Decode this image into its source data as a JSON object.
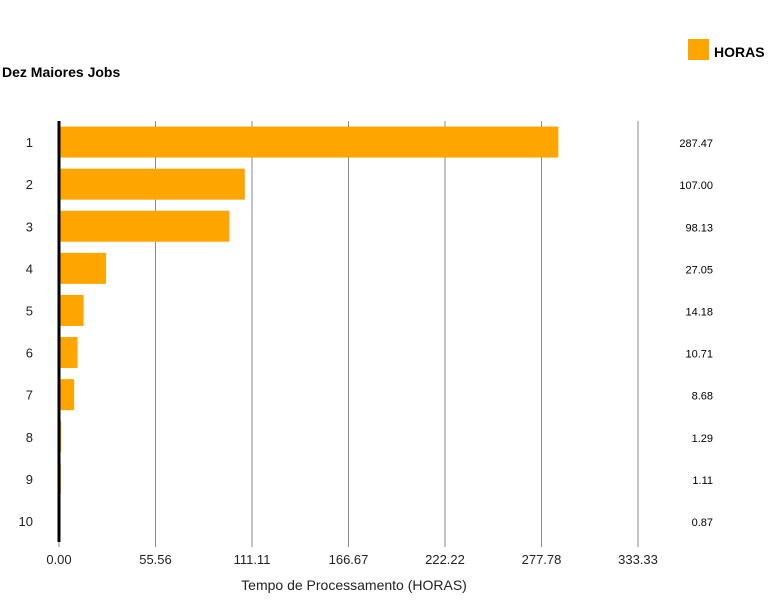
{
  "chart_data": {
    "type": "bar",
    "orientation": "horizontal",
    "title": "Dez Maiores Jobs",
    "xlabel": "Tempo de Processamento (HORAS)",
    "ylabel": "",
    "xlim": [
      0,
      333.33
    ],
    "xticks": [
      "0.00",
      "55.56",
      "111.11",
      "166.67",
      "222.22",
      "277.78",
      "333.33"
    ],
    "grid": "vertical",
    "legend_position": "top-right",
    "categories": [
      "1",
      "2",
      "3",
      "4",
      "5",
      "6",
      "7",
      "8",
      "9",
      "10"
    ],
    "series": [
      {
        "name": "HORAS",
        "color": "#FFA500",
        "values": [
          287.47,
          107.0,
          98.13,
          27.05,
          14.18,
          10.71,
          8.68,
          1.29,
          1.11,
          0.87
        ],
        "labels": [
          "287.47",
          "107.00",
          "98.13",
          "27.05",
          "14.18",
          "10.71",
          "8.68",
          "1.29",
          "1.11",
          "0.87"
        ]
      }
    ]
  }
}
